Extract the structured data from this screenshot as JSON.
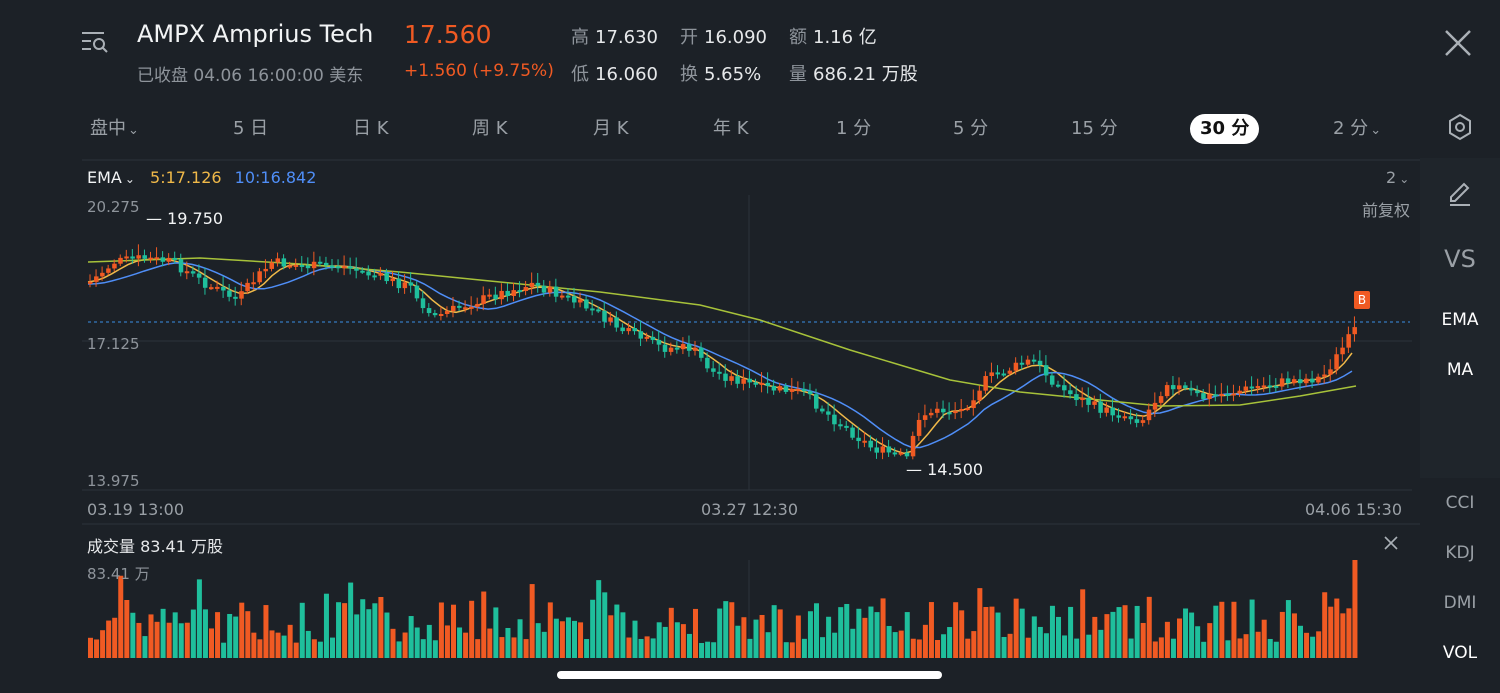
{
  "header": {
    "symbol_name": "AMPX Amprius Tech",
    "price": "17.560",
    "status": "已收盘 04.06 16:00:00 美东",
    "change": "+1.560 (+9.75%)",
    "stats": [
      {
        "label": "高",
        "value": "17.630"
      },
      {
        "label": "开",
        "value": "16.090"
      },
      {
        "label": "额",
        "value": "1.16 亿"
      },
      {
        "label": "低",
        "value": "16.060"
      },
      {
        "label": "换",
        "value": "5.65%"
      },
      {
        "label": "量",
        "value": "686.21 万股"
      }
    ]
  },
  "periods": [
    "盘中",
    "5 日",
    "日 K",
    "周 K",
    "月 K",
    "年 K",
    "1 分",
    "5 分",
    "15 分",
    "30 分",
    "2 分"
  ],
  "active_period": "30 分",
  "chevron": "⌄",
  "indicator": {
    "name": "EMA",
    "ema5": "5:17.126",
    "ema10": "10:16.842",
    "count": "2"
  },
  "y_labels": {
    "top": "20.275",
    "mid": "17.125",
    "bottom": "13.975"
  },
  "adjust_label": "前复权",
  "annotations": {
    "high": "19.750",
    "low": "14.500",
    "buy_marker": "B"
  },
  "x_labels": [
    "03.19 13:00",
    "03.27 12:30",
    "04.06 15:30"
  ],
  "volume": {
    "legend": "成交量  83.41  万股",
    "max_label": "83.41 万"
  },
  "sidebar": {
    "vs": "VS",
    "main_indicators": [
      "EMA",
      "MA"
    ],
    "sub_indicators": [
      "CCI",
      "KDJ",
      "DMI",
      "VOL"
    ]
  },
  "colors": {
    "up": "#f05a23",
    "down": "#1fbf9c",
    "ema5": "#f0b949",
    "ema10": "#4f8ef7",
    "ema20": "#a7c23a",
    "background": "#1c2127"
  },
  "icons": [
    "menu-search-icon",
    "close-icon",
    "settings-hexagon-icon",
    "edit-pencil-icon",
    "chevron-down-icon"
  ]
}
